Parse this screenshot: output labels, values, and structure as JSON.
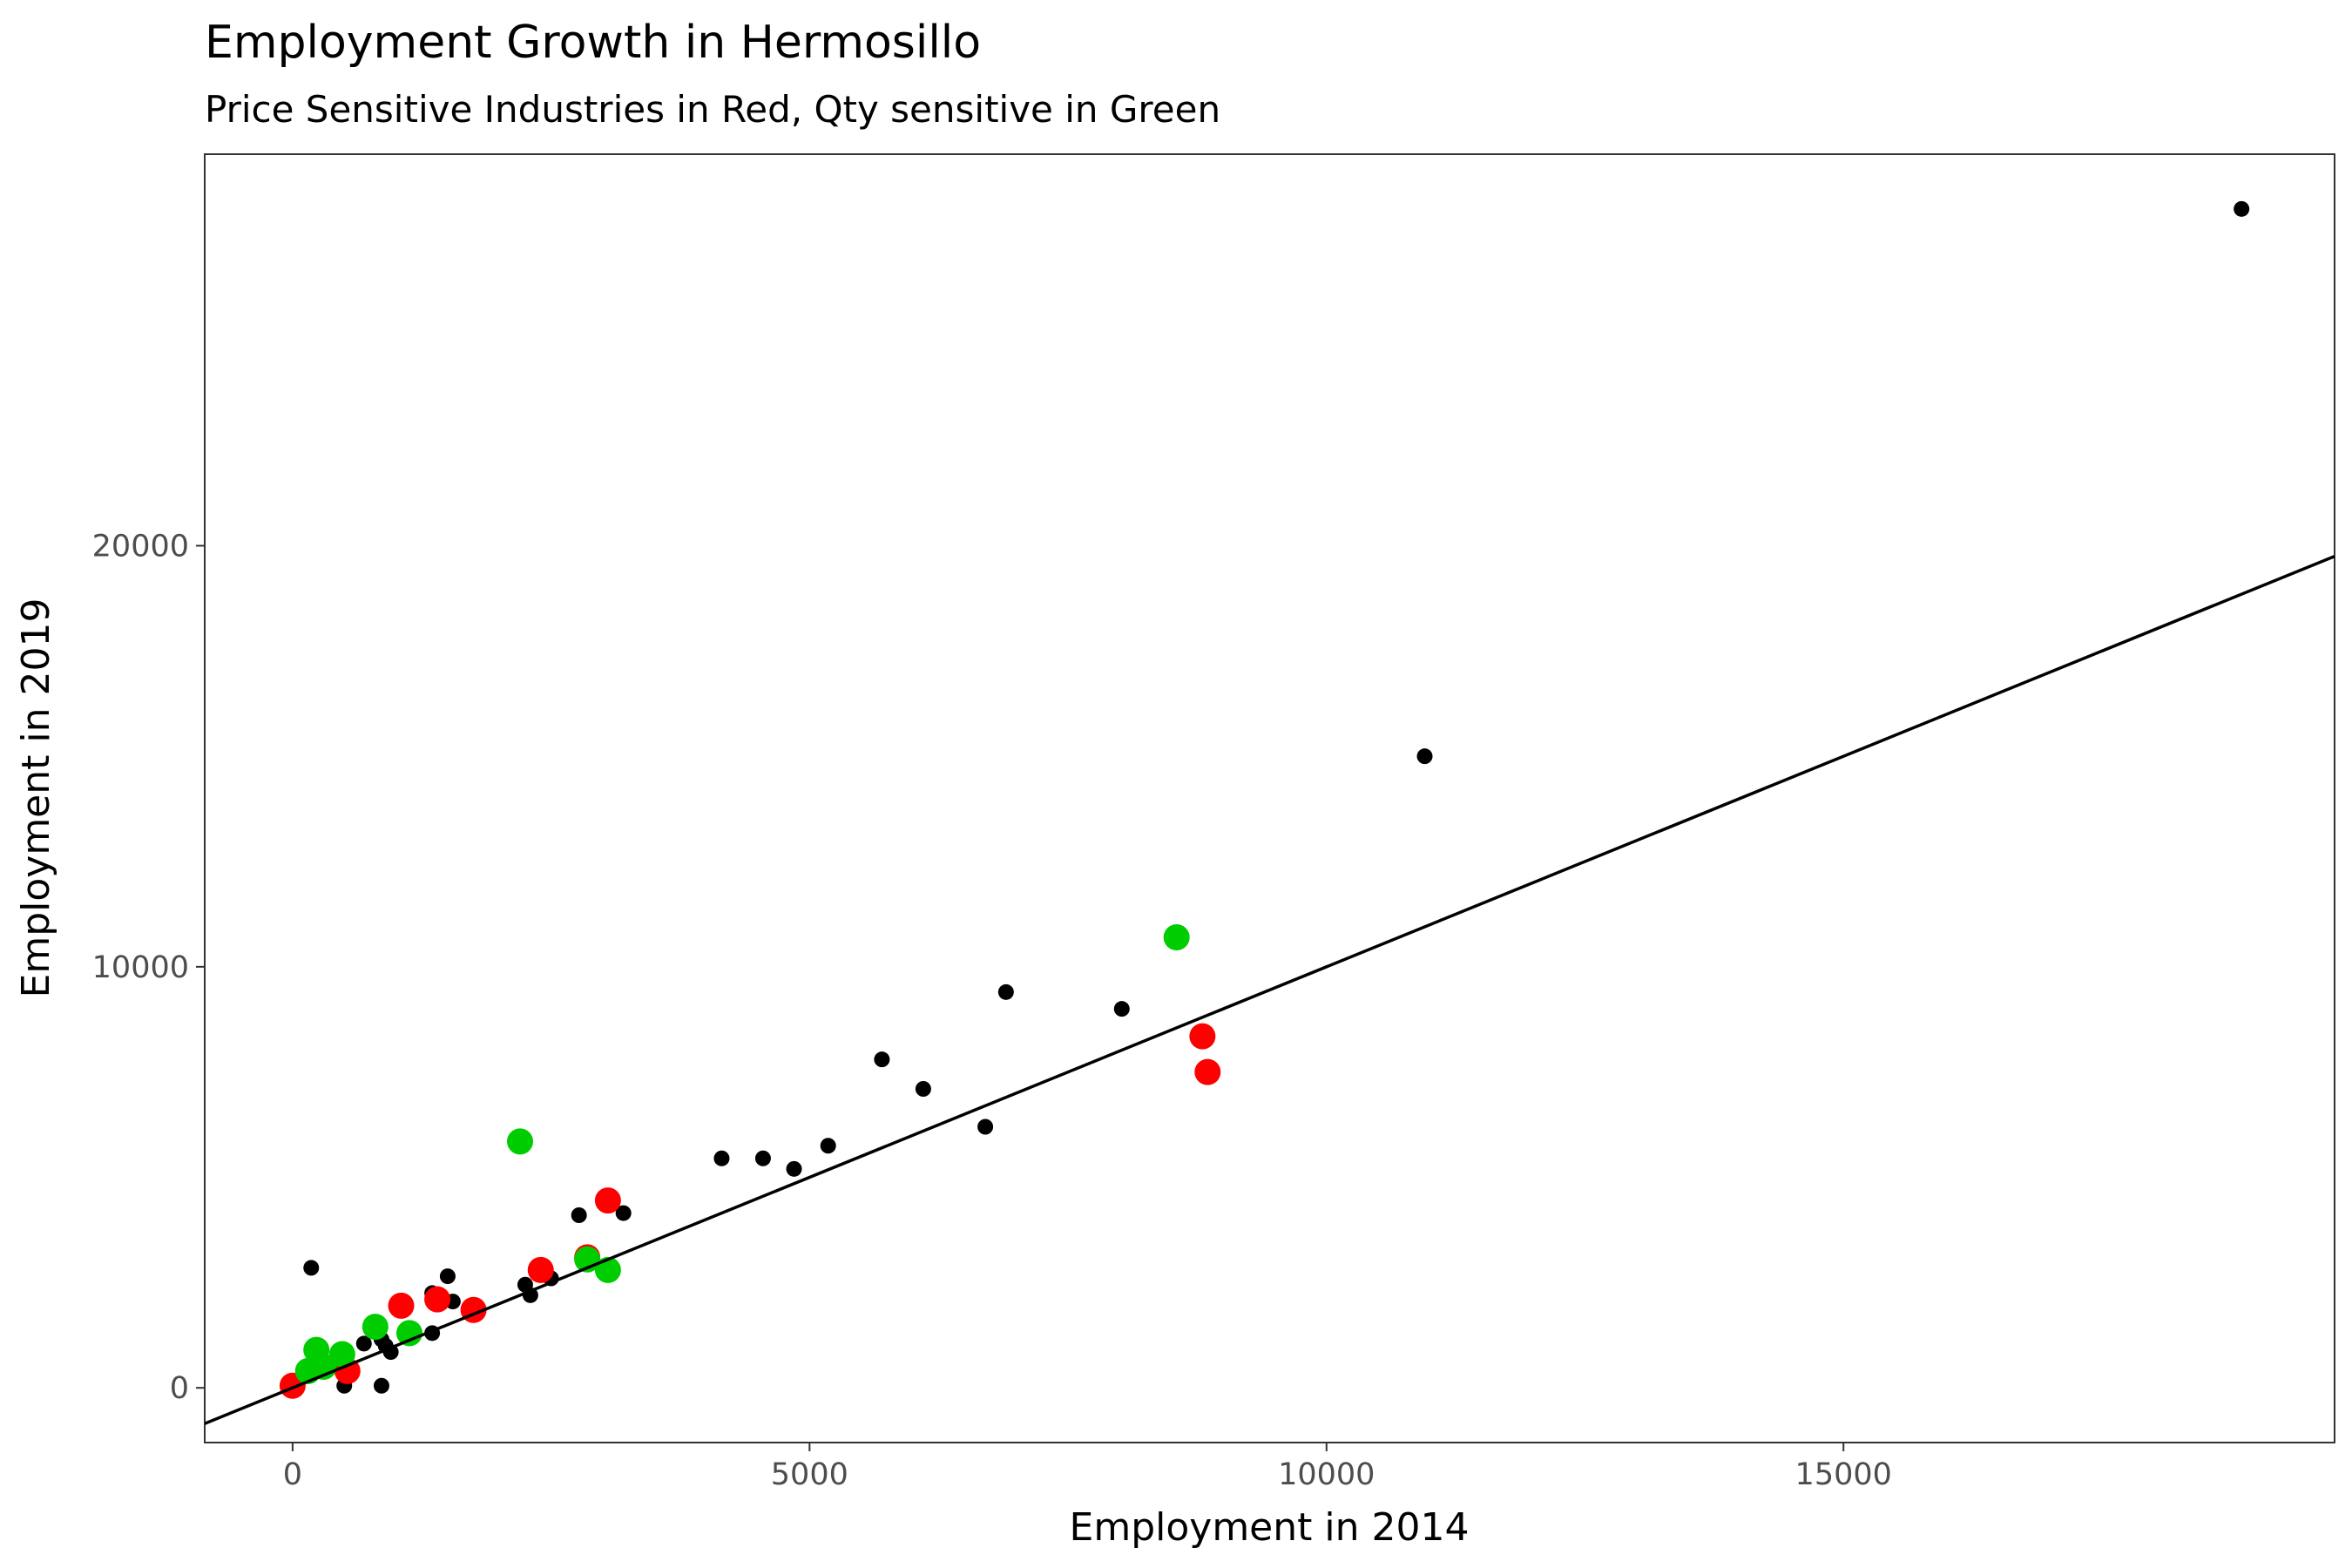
{
  "chart_data": {
    "type": "scatter",
    "title": "Employment Growth in Hermosillo",
    "subtitle": "Price Sensitive Industries in Red, Qty sensitive in Green",
    "xlabel": "Employment in 2014",
    "ylabel": "Employment in 2019",
    "xlim": [
      -850,
      19750
    ],
    "ylim": [
      -1300,
      29300
    ],
    "x_ticks": [
      0,
      5000,
      10000,
      15000
    ],
    "x_tick_labels": [
      "0",
      "5000",
      "10000",
      "15000"
    ],
    "y_ticks": [
      0,
      10000,
      20000
    ],
    "y_tick_labels": [
      "0",
      "10000",
      "20000"
    ],
    "grid": false,
    "colors": {
      "other": "#000000",
      "price_sensitive": "#ff0000",
      "qty_sensitive": "#00cd00",
      "reference_line": "#000000"
    },
    "reference_line": {
      "slope": 1.0,
      "intercept": 0,
      "from_x": -850,
      "to_x": 19750
    },
    "series": [
      {
        "group": "other",
        "x": [
          18850,
          10950,
          6900,
          8020,
          5700,
          6100,
          6700,
          4150,
          4550,
          4850,
          5180,
          2770,
          3200,
          180,
          1500,
          1350,
          1550,
          2250,
          2300,
          690,
          900,
          950,
          860,
          1350,
          500,
          860,
          2500,
          2900
        ],
        "y": [
          28000,
          15000,
          9400,
          9000,
          7800,
          7100,
          6200,
          5450,
          5450,
          5200,
          5750,
          4100,
          4150,
          2850,
          2650,
          2250,
          2050,
          2450,
          2200,
          1050,
          1000,
          850,
          50,
          1300,
          50,
          1150,
          2600,
          3000
        ]
      },
      {
        "group": "price_sensitive",
        "x": [
          8800,
          8850,
          3050,
          2850,
          2400,
          1750,
          1400,
          1050,
          530,
          0
        ],
        "y": [
          8350,
          7500,
          4450,
          3100,
          2800,
          1850,
          2100,
          1950,
          400,
          50
        ]
      },
      {
        "group": "qty_sensitive",
        "x": [
          8550,
          2200,
          3050,
          2850,
          800,
          1130,
          230,
          480,
          300,
          150
        ],
        "y": [
          10700,
          5850,
          2800,
          3050,
          1450,
          1300,
          900,
          800,
          500,
          400
        ]
      }
    ]
  }
}
